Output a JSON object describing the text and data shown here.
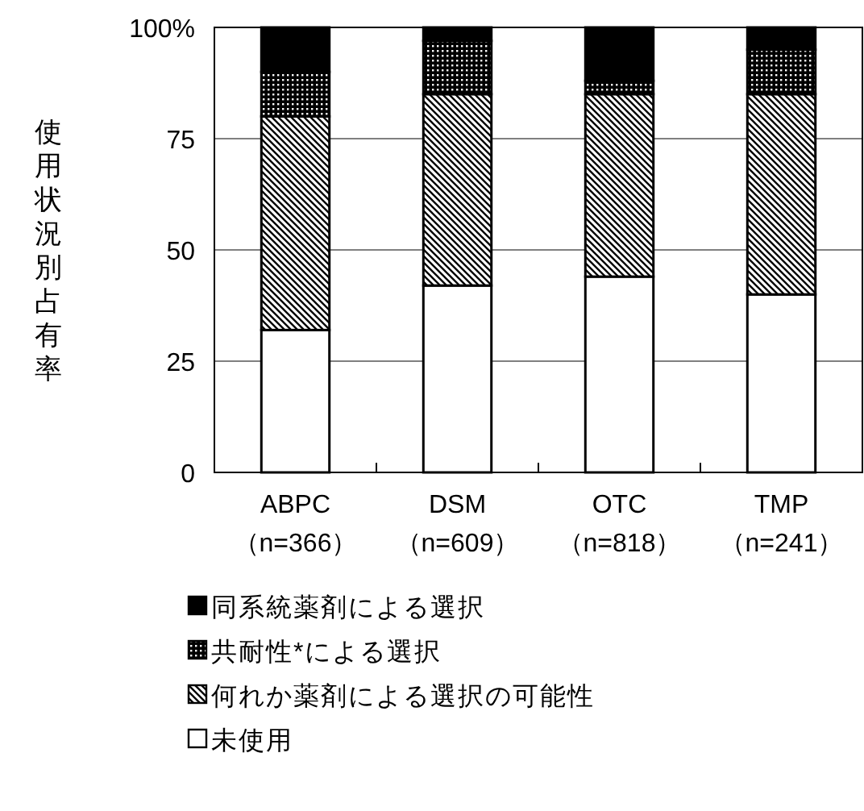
{
  "chart_data": {
    "type": "bar",
    "stacked": true,
    "ylabel": "使用状況別占有率",
    "categories": [
      "ABPC\n（n=366）",
      "DSM\n（n=609）",
      "OTC\n（n=818）",
      "TMP\n（n=241）"
    ],
    "series": [
      {
        "name": "未使用",
        "color": "#ffffff",
        "values": [
          32,
          42,
          44,
          40
        ]
      },
      {
        "name": "何れか薬剤による選択の可能性",
        "color": "#000000",
        "values": [
          48,
          43,
          41,
          45
        ]
      },
      {
        "name": "共耐性*による選択",
        "color": "#000000",
        "values": [
          10,
          12,
          3,
          10
        ]
      },
      {
        "name": "同系統薬剤による選択",
        "color": "#000000",
        "values": [
          10,
          3,
          12,
          5
        ]
      }
    ],
    "ylim": [
      0,
      100
    ],
    "yticks": [
      0,
      25,
      50,
      75,
      {
        "value": 100,
        "label": "100%"
      }
    ],
    "grid": "y",
    "legend": "bottom"
  }
}
